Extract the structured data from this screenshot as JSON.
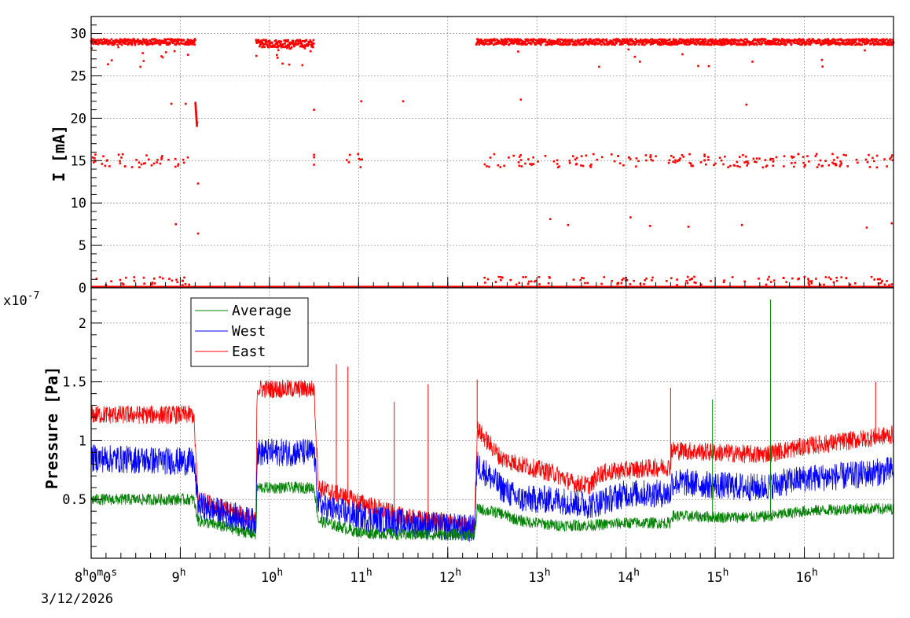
{
  "chart_data": [
    {
      "panel": "top",
      "type": "scatter",
      "ylabel": "I [mA]",
      "ylim": [
        0,
        32
      ],
      "yticks": [
        "0",
        "5",
        "10",
        "15",
        "20",
        "25",
        "30"
      ],
      "grid": true,
      "series": [
        {
          "color": "#ff0000",
          "segments": [
            {
              "x_start": 8.0,
              "x_end": 9.17,
              "level": 29.0,
              "spread": 0.35
            },
            {
              "x_start": 9.85,
              "x_end": 10.5,
              "level": 28.8,
              "spread": 0.45
            },
            {
              "x_start": 12.32,
              "x_end": 17.0,
              "level": 29.0,
              "spread": 0.35
            }
          ],
          "baseline": 0.0,
          "mid_band_level": 15.0,
          "notable_points": [
            [
              8.9,
              21.7
            ],
            [
              9.06,
              21.7
            ],
            [
              9.17,
              21.8
            ],
            [
              9.19,
              19.5
            ],
            [
              9.2,
              12.3
            ],
            [
              9.2,
              6.4
            ],
            [
              8.95,
              7.5
            ],
            [
              10.5,
              21.0
            ],
            [
              11.03,
              22.0
            ],
            [
              11.5,
              22.0
            ],
            [
              12.82,
              22.2
            ],
            [
              15.35,
              21.6
            ],
            [
              13.15,
              8.1
            ],
            [
              13.35,
              7.4
            ],
            [
              14.05,
              8.3
            ],
            [
              14.27,
              7.3
            ],
            [
              14.7,
              7.2
            ],
            [
              15.3,
              7.4
            ],
            [
              16.7,
              7.1
            ],
            [
              16.98,
              7.6
            ]
          ]
        }
      ]
    },
    {
      "panel": "bottom",
      "type": "line",
      "ylabel": "Pressure [Pa]",
      "y_multiplier": "x10",
      "y_exponent": "-7",
      "ylim": [
        0.0,
        2.3
      ],
      "yticks": [
        "0.5",
        "1",
        "1.5",
        "2"
      ],
      "ytick_values": [
        0.5,
        1.0,
        1.5,
        2.0
      ],
      "xlabel": "",
      "xlim_hours": [
        8.0,
        17.0
      ],
      "xtick_hours": [
        8,
        9,
        10,
        11,
        12,
        13,
        14,
        15,
        16
      ],
      "x_start_label": "8",
      "x_start_label_suffix": [
        "h",
        "0",
        "m",
        "0",
        "s"
      ],
      "x_date_label": "3/12/2026",
      "hour_unit": "h",
      "grid": true,
      "legend": {
        "placement": "top-left",
        "entries": [
          {
            "name": "Average",
            "color": "#008000"
          },
          {
            "name": "West",
            "color": "#0000ff"
          },
          {
            "name": "East",
            "color": "#ff0000"
          }
        ]
      },
      "series": [
        {
          "name": "East",
          "color": "#ff0000",
          "profile": [
            [
              8.0,
              1.22
            ],
            [
              9.15,
              1.22
            ],
            [
              9.2,
              0.5
            ],
            [
              9.85,
              0.32
            ],
            [
              9.86,
              1.44
            ],
            [
              10.5,
              1.44
            ],
            [
              10.55,
              0.6
            ],
            [
              11.0,
              0.48
            ],
            [
              11.5,
              0.35
            ],
            [
              12.3,
              0.27
            ],
            [
              12.33,
              1.1
            ],
            [
              12.6,
              0.85
            ],
            [
              12.8,
              0.8
            ],
            [
              13.2,
              0.72
            ],
            [
              13.4,
              0.64
            ],
            [
              13.6,
              0.62
            ],
            [
              13.7,
              0.72
            ],
            [
              14.0,
              0.75
            ],
            [
              14.5,
              0.78
            ],
            [
              14.51,
              0.92
            ],
            [
              15.0,
              0.9
            ],
            [
              15.5,
              0.88
            ],
            [
              16.0,
              0.95
            ],
            [
              16.5,
              1.0
            ],
            [
              17.0,
              1.05
            ]
          ],
          "noise": 0.08
        },
        {
          "name": "West",
          "color": "#0000ff",
          "profile": [
            [
              8.0,
              0.85
            ],
            [
              9.15,
              0.82
            ],
            [
              9.2,
              0.45
            ],
            [
              9.85,
              0.3
            ],
            [
              9.86,
              0.9
            ],
            [
              10.5,
              0.9
            ],
            [
              10.55,
              0.45
            ],
            [
              11.0,
              0.35
            ],
            [
              11.5,
              0.3
            ],
            [
              12.3,
              0.25
            ],
            [
              12.33,
              0.8
            ],
            [
              12.6,
              0.6
            ],
            [
              12.8,
              0.5
            ],
            [
              13.2,
              0.5
            ],
            [
              13.6,
              0.45
            ],
            [
              14.0,
              0.55
            ],
            [
              14.5,
              0.55
            ],
            [
              14.51,
              0.65
            ],
            [
              15.0,
              0.62
            ],
            [
              15.5,
              0.6
            ],
            [
              16.0,
              0.68
            ],
            [
              16.5,
              0.7
            ],
            [
              17.0,
              0.75
            ]
          ],
          "noise": 0.12
        },
        {
          "name": "Average",
          "color": "#008000",
          "profile": [
            [
              8.0,
              0.5
            ],
            [
              9.15,
              0.5
            ],
            [
              9.2,
              0.32
            ],
            [
              9.85,
              0.2
            ],
            [
              9.86,
              0.6
            ],
            [
              10.5,
              0.6
            ],
            [
              10.55,
              0.32
            ],
            [
              11.0,
              0.22
            ],
            [
              11.5,
              0.2
            ],
            [
              12.3,
              0.2
            ],
            [
              12.33,
              0.42
            ],
            [
              12.6,
              0.38
            ],
            [
              12.8,
              0.32
            ],
            [
              13.2,
              0.28
            ],
            [
              13.6,
              0.28
            ],
            [
              14.0,
              0.3
            ],
            [
              14.5,
              0.3
            ],
            [
              14.51,
              0.36
            ],
            [
              15.0,
              0.35
            ],
            [
              15.5,
              0.35
            ],
            [
              16.0,
              0.4
            ],
            [
              16.5,
              0.42
            ],
            [
              17.0,
              0.42
            ]
          ],
          "noise": 0.05
        }
      ],
      "spikes": [
        {
          "series": "Average",
          "x": 15.62,
          "y": 2.2
        },
        {
          "series": "Average",
          "x": 14.97,
          "y": 1.35
        },
        {
          "series": "East",
          "x": 14.5,
          "y": 1.45
        },
        {
          "series": "East",
          "x": 16.8,
          "y": 1.5
        },
        {
          "series": "East",
          "x": 10.75,
          "y": 1.65
        },
        {
          "series": "East",
          "x": 10.88,
          "y": 1.63
        },
        {
          "series": "East",
          "x": 11.4,
          "y": 1.33
        },
        {
          "series": "East",
          "x": 11.78,
          "y": 1.48
        },
        {
          "series": "East",
          "x": 12.33,
          "y": 1.52
        }
      ]
    }
  ]
}
